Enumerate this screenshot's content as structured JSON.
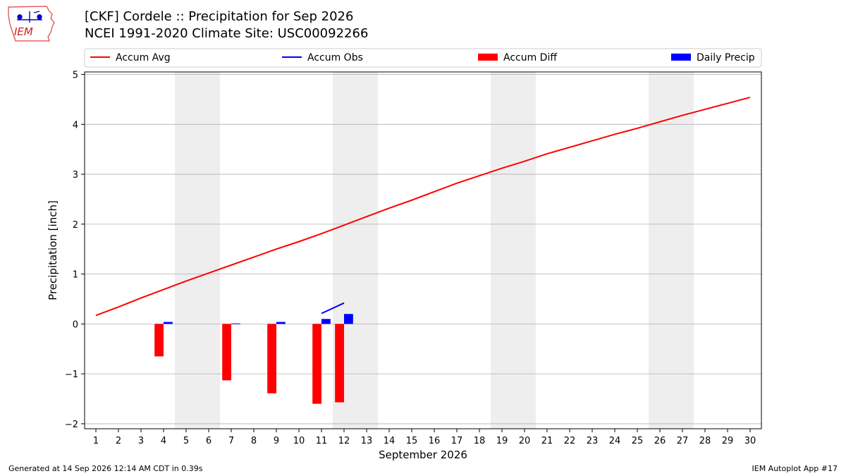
{
  "header": {
    "title_line1": "[CKF] Cordele :: Precipitation for Sep 2026",
    "title_line2": "NCEI 1991-2020 Climate Site: USC00092266"
  },
  "logo": {
    "text": "IEM"
  },
  "footer": {
    "generated": "Generated at 14 Sep 2026 12:14 AM CDT in 0.39s",
    "app": "IEM Autoplot App #17"
  },
  "colors": {
    "accum_avg": "#ff0000",
    "accum_obs": "#0000ff",
    "accum_diff": "#ff0000",
    "daily_precip": "#0000ff",
    "weekend": "#eeeeee",
    "grid": "#b0b0b0"
  },
  "chart_data": {
    "type": "bar",
    "xlabel": "September 2026",
    "ylabel": "Precipitation [inch]",
    "xlim": [
      0.5,
      30.5
    ],
    "ylim": [
      -2.1,
      5.05
    ],
    "yticks": [
      -2,
      -1,
      0,
      1,
      2,
      3,
      4,
      5
    ],
    "ytick_labels": [
      "−2",
      "−1",
      "0",
      "1",
      "2",
      "3",
      "4",
      "5"
    ],
    "days": [
      1,
      2,
      3,
      4,
      5,
      6,
      7,
      8,
      9,
      10,
      11,
      12,
      13,
      14,
      15,
      16,
      17,
      18,
      19,
      20,
      21,
      22,
      23,
      24,
      25,
      26,
      27,
      28,
      29,
      30
    ],
    "weekend_days": [
      5,
      6,
      12,
      13,
      19,
      20,
      26,
      27
    ],
    "grid": true,
    "legend": {
      "placement": "top",
      "entries": [
        {
          "label": "Accum Avg",
          "kind": "line",
          "color": "#ff0000"
        },
        {
          "label": "Accum Obs",
          "kind": "line",
          "color": "#0000ff"
        },
        {
          "label": "Accum Diff",
          "kind": "bar",
          "color": "#ff0000"
        },
        {
          "label": "Daily Precip",
          "kind": "bar",
          "color": "#0000ff"
        }
      ]
    },
    "series": [
      {
        "name": "Accum Avg",
        "kind": "line",
        "x": [
          1,
          2,
          3,
          4,
          5,
          6,
          7,
          8,
          9,
          10,
          11,
          12,
          13,
          14,
          15,
          16,
          17,
          18,
          19,
          20,
          21,
          22,
          23,
          24,
          25,
          26,
          27,
          28,
          29,
          30
        ],
        "values": [
          0.17,
          0.34,
          0.52,
          0.69,
          0.86,
          1.02,
          1.18,
          1.34,
          1.5,
          1.65,
          1.81,
          1.98,
          2.15,
          2.32,
          2.48,
          2.65,
          2.82,
          2.97,
          3.12,
          3.26,
          3.41,
          3.54,
          3.67,
          3.8,
          3.92,
          4.05,
          4.18,
          4.3,
          4.42,
          4.54
        ]
      },
      {
        "name": "Accum Obs",
        "kind": "line",
        "x": [
          11,
          12
        ],
        "values": [
          0.21,
          0.42
        ]
      },
      {
        "name": "Accum Diff",
        "kind": "bar",
        "x": [
          4,
          7,
          9,
          11,
          12
        ],
        "values": [
          -0.65,
          -1.13,
          -1.39,
          -1.6,
          -1.57
        ]
      },
      {
        "name": "Daily Precip",
        "kind": "bar",
        "x": [
          4,
          7,
          9,
          11,
          12
        ],
        "values": [
          0.04,
          0.01,
          0.04,
          0.1,
          0.2
        ]
      }
    ]
  }
}
